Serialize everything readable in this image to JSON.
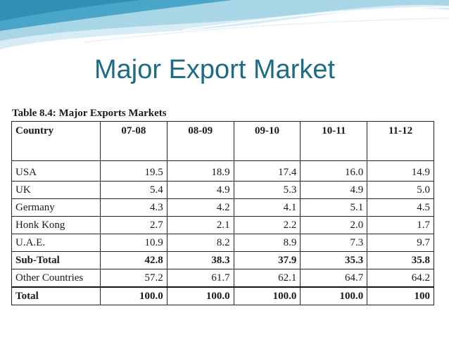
{
  "slide": {
    "title": "Major Export Market"
  },
  "table": {
    "caption": "Table 8.4: Major Exports Markets",
    "headers": [
      "Country",
      "07-08",
      "08-09",
      "09-10",
      "10-11",
      "11-12"
    ],
    "rows": [
      {
        "country": "USA",
        "values": [
          "19.5",
          "18.9",
          "17.4",
          "16.0",
          "14.9"
        ]
      },
      {
        "country": "UK",
        "values": [
          "5.4",
          "4.9",
          "5.3",
          "4.9",
          "5.0"
        ]
      },
      {
        "country": "Germany",
        "values": [
          "4.3",
          "4.2",
          "4.1",
          "5.1",
          "4.5"
        ]
      },
      {
        "country": "Honk Kong",
        "values": [
          "2.7",
          "2.1",
          "2.2",
          "2.0",
          "1.7"
        ]
      },
      {
        "country": "U.A.E.",
        "values": [
          "10.9",
          "8.2",
          "8.9",
          "7.3",
          "9.7"
        ]
      },
      {
        "country": "Sub-Total",
        "values": [
          "42.8",
          "38.3",
          "37.9",
          "35.3",
          "35.8"
        ]
      },
      {
        "country": "Other Countries",
        "values": [
          "57.2",
          "61.7",
          "62.1",
          "64.7",
          "64.2"
        ]
      },
      {
        "country": "Total",
        "values": [
          "100.0",
          "100.0",
          "100.0",
          "100.0",
          "100"
        ]
      }
    ]
  },
  "colors": {
    "title": "#1d6b84",
    "swoosh_light": "#cfe7f1",
    "swoosh_mid": "#8fc6da",
    "swoosh_dark": "#3f9bbf"
  }
}
